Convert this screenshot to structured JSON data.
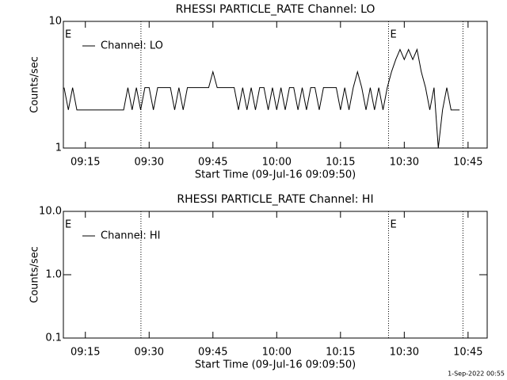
{
  "chart_data": [
    {
      "type": "line",
      "title": "RHESSI PARTICLE_RATE Channel: LO",
      "xlabel": "Start Time (09-Jul-16 09:09:50)",
      "ylabel": "Counts/sec",
      "log_y": true,
      "x": [
        550,
        551,
        552,
        553,
        554,
        555,
        556,
        557,
        558,
        559,
        560,
        561,
        562,
        563,
        564,
        565,
        566,
        567,
        568,
        569,
        570,
        571,
        572,
        573,
        574,
        575,
        576,
        577,
        578,
        579,
        580,
        581,
        582,
        583,
        584,
        585,
        586,
        587,
        588,
        589,
        590,
        591,
        592,
        593,
        594,
        595,
        596,
        597,
        598,
        599,
        600,
        601,
        602,
        603,
        604,
        605,
        606,
        607,
        608,
        609,
        610,
        611,
        612,
        613,
        614,
        615,
        616,
        617,
        618,
        619,
        620,
        621,
        622,
        623,
        624,
        625,
        626,
        627,
        628,
        629,
        630,
        631,
        632,
        633,
        634,
        635,
        636,
        637,
        638,
        639,
        640,
        641,
        642,
        643
      ],
      "series": [
        {
          "name": "Channel: LO",
          "color": "#000000",
          "values": [
            3,
            2,
            3,
            2,
            2,
            2,
            2,
            2,
            2,
            2,
            2,
            2,
            2,
            2,
            2,
            3,
            2,
            3,
            2,
            3,
            3,
            2,
            3,
            3,
            3,
            3,
            2,
            3,
            2,
            3,
            3,
            3,
            3,
            3,
            3,
            4,
            3,
            3,
            3,
            3,
            3,
            2,
            3,
            2,
            3,
            2,
            3,
            3,
            2,
            3,
            2,
            3,
            2,
            3,
            3,
            2,
            3,
            2,
            3,
            3,
            2,
            3,
            3,
            3,
            3,
            2,
            3,
            2,
            3,
            4,
            3,
            2,
            3,
            2,
            3,
            2,
            3,
            4,
            5,
            6,
            5,
            6,
            5,
            6,
            4,
            3,
            2,
            3,
            1,
            2,
            3,
            2,
            2,
            2
          ]
        }
      ],
      "xlim": [
        549.83,
        649.5
      ],
      "xticks": [
        {
          "value": 555,
          "label": "09:15"
        },
        {
          "value": 570,
          "label": "09:30"
        },
        {
          "value": 585,
          "label": "09:45"
        },
        {
          "value": 600,
          "label": "10:00"
        },
        {
          "value": 615,
          "label": "10:15"
        },
        {
          "value": 630,
          "label": "10:30"
        },
        {
          "value": 645,
          "label": "10:45"
        }
      ],
      "ylim": [
        1,
        10
      ],
      "yticks": [
        1,
        10
      ],
      "vlines": [
        568.07,
        626.3,
        643.8
      ],
      "annotations": [
        {
          "text": "E",
          "x": 549.83
        },
        {
          "text": "E",
          "x": 626.3
        }
      ]
    },
    {
      "type": "line",
      "title": "RHESSI PARTICLE_RATE Channel: HI",
      "xlabel": "Start Time (09-Jul-16 09:09:50)",
      "ylabel": "Counts/sec",
      "log_y": true,
      "x": [],
      "series": [
        {
          "name": "Channel: HI",
          "color": "#000000",
          "values": []
        }
      ],
      "xlim": [
        549.83,
        649.5
      ],
      "xticks": [
        {
          "value": 555,
          "label": "09:15"
        },
        {
          "value": 570,
          "label": "09:30"
        },
        {
          "value": 585,
          "label": "09:45"
        },
        {
          "value": 600,
          "label": "10:00"
        },
        {
          "value": 615,
          "label": "10:15"
        },
        {
          "value": 630,
          "label": "10:30"
        },
        {
          "value": 645,
          "label": "10:45"
        }
      ],
      "ylim": [
        0.1,
        10
      ],
      "yticks": [
        0.1,
        {
          "value": 1,
          "label": "1.0"
        },
        {
          "value": 10,
          "label": "10.0"
        }
      ],
      "vlines": [
        568.07,
        626.3,
        643.8
      ],
      "annotations": [
        {
          "text": "E",
          "x": 549.83
        },
        {
          "text": "E",
          "x": 626.3
        }
      ]
    }
  ],
  "footer": "1-Sep-2022 00:55"
}
